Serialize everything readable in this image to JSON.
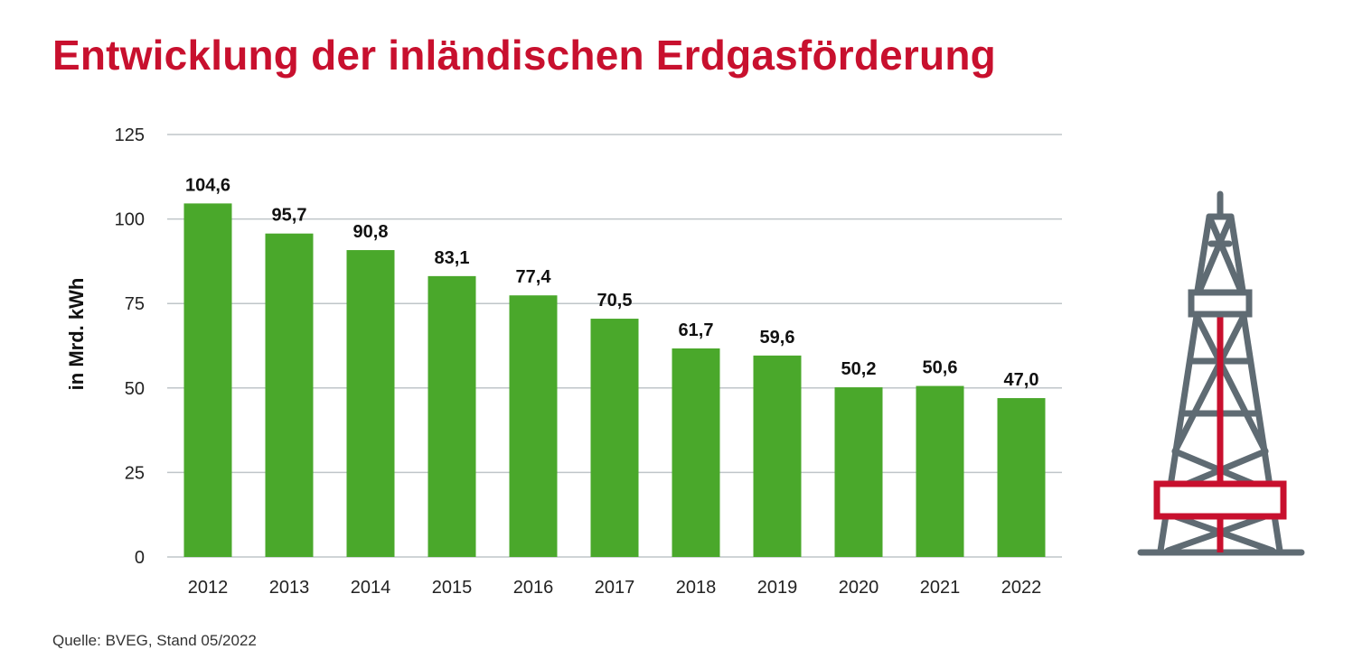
{
  "title": "Entwicklung der inländischen Erdgasförderung",
  "source": "Quelle: BVEG, Stand 05/2022",
  "colors": {
    "title": "#c8102e",
    "bar": "#4aa82b",
    "grid": "#bfc5c9",
    "rig_steel": "#5f6b73",
    "rig_accent": "#c8102e"
  },
  "icon": "oil-derrick-icon",
  "chart_data": {
    "type": "bar",
    "categories": [
      "2012",
      "2013",
      "2014",
      "2015",
      "2016",
      "2017",
      "2018",
      "2019",
      "2020",
      "2021",
      "2022"
    ],
    "values": [
      104.6,
      95.7,
      90.8,
      83.1,
      77.4,
      70.5,
      61.7,
      59.6,
      50.2,
      50.6,
      47.0
    ],
    "value_labels": [
      "104,6",
      "95,7",
      "90,8",
      "83,1",
      "77,4",
      "70,5",
      "61,7",
      "59,6",
      "50,2",
      "50,6",
      "47,0"
    ],
    "ylabel": "in Mrd. kWh",
    "xlabel": "",
    "ylim": [
      0,
      125
    ],
    "yticks": [
      0,
      25,
      50,
      75,
      100,
      125
    ],
    "grid": true,
    "legend": "none"
  }
}
